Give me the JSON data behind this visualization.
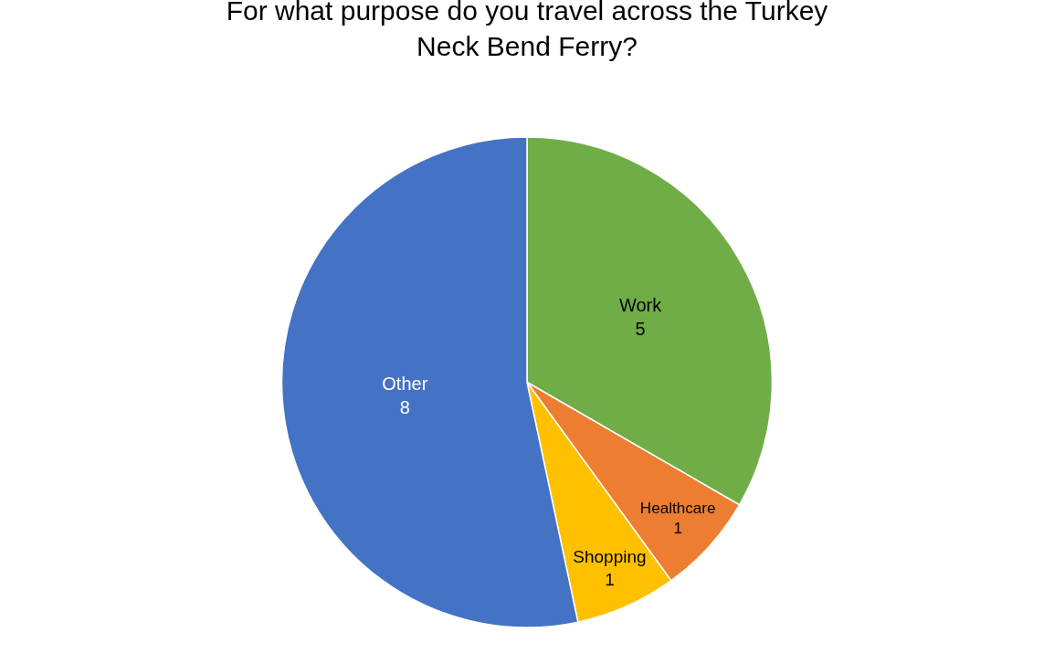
{
  "chart_data": {
    "type": "pie",
    "title": "For what purpose do you travel across the Turkey Neck Bend Ferry?",
    "categories": [
      "Work",
      "Healthcare",
      "Shopping",
      "Other"
    ],
    "values": [
      5,
      1,
      1,
      8
    ],
    "colors": [
      "#70ad47",
      "#ed7d31",
      "#ffc000",
      "#4472c4"
    ],
    "data_labels": true,
    "legend": false
  }
}
